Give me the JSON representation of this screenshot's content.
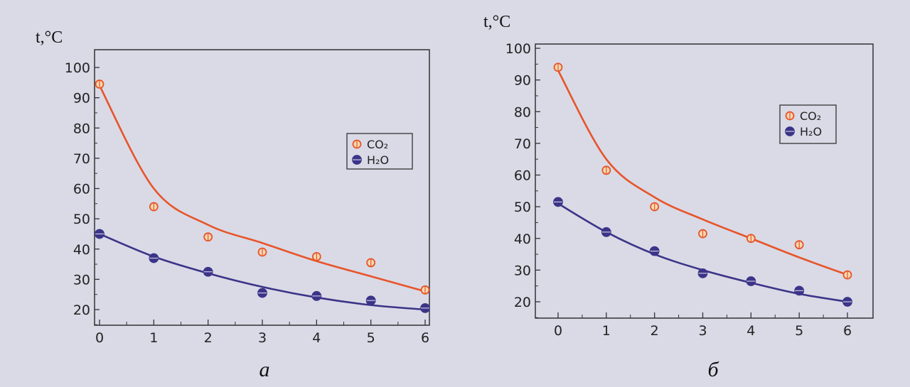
{
  "chart_data": [
    {
      "type": "scatter",
      "caption": "а",
      "ylabel": "t,°C",
      "xlabel": "",
      "xlim": [
        0,
        6
      ],
      "ylim": [
        20,
        100
      ],
      "x": [
        0,
        1,
        2,
        3,
        4,
        5,
        6
      ],
      "xticks": [
        "0",
        "1",
        "2",
        "3",
        "4",
        "5",
        "6"
      ],
      "yticks": [
        "20",
        "30",
        "40",
        "50",
        "60",
        "70",
        "80",
        "90",
        "100"
      ],
      "legend": {
        "position": "right-middle",
        "entries": [
          "CO₂",
          "H₂O"
        ]
      },
      "series": [
        {
          "name": "CO₂",
          "color": "#e8542a",
          "values": [
            94.5,
            54,
            44,
            39,
            37.5,
            35.5,
            26.5
          ],
          "fit": [
            94,
            60,
            48,
            42,
            36,
            31,
            26
          ]
        },
        {
          "name": "H₂O",
          "color": "#3b3488",
          "values": [
            45,
            37,
            32.5,
            25.5,
            24.5,
            23,
            20.5
          ],
          "fit": [
            45,
            37.5,
            32,
            27.5,
            24,
            21.5,
            20
          ]
        }
      ]
    },
    {
      "type": "scatter",
      "caption": "б",
      "ylabel": "t,°C",
      "xlabel": "",
      "xlim": [
        0,
        6
      ],
      "ylim": [
        20,
        100
      ],
      "x": [
        0,
        1,
        2,
        3,
        4,
        5,
        6
      ],
      "xticks": [
        "0",
        "1",
        "2",
        "3",
        "4",
        "5",
        "6"
      ],
      "yticks": [
        "20",
        "30",
        "40",
        "50",
        "60",
        "70",
        "80",
        "90",
        "100"
      ],
      "legend": {
        "position": "top-right",
        "entries": [
          "CO₂",
          "H₂O"
        ]
      },
      "series": [
        {
          "name": "CO₂",
          "color": "#e8542a",
          "values": [
            94,
            61.5,
            50,
            41.5,
            40,
            38,
            28.5
          ],
          "fit": [
            93,
            65,
            53,
            46,
            40,
            34,
            28.5
          ]
        },
        {
          "name": "H₂O",
          "color": "#3b3488",
          "values": [
            51.5,
            42,
            36,
            29,
            26.5,
            23.5,
            20
          ],
          "fit": [
            51,
            42,
            35,
            30,
            26,
            22.5,
            20
          ]
        }
      ]
    }
  ]
}
